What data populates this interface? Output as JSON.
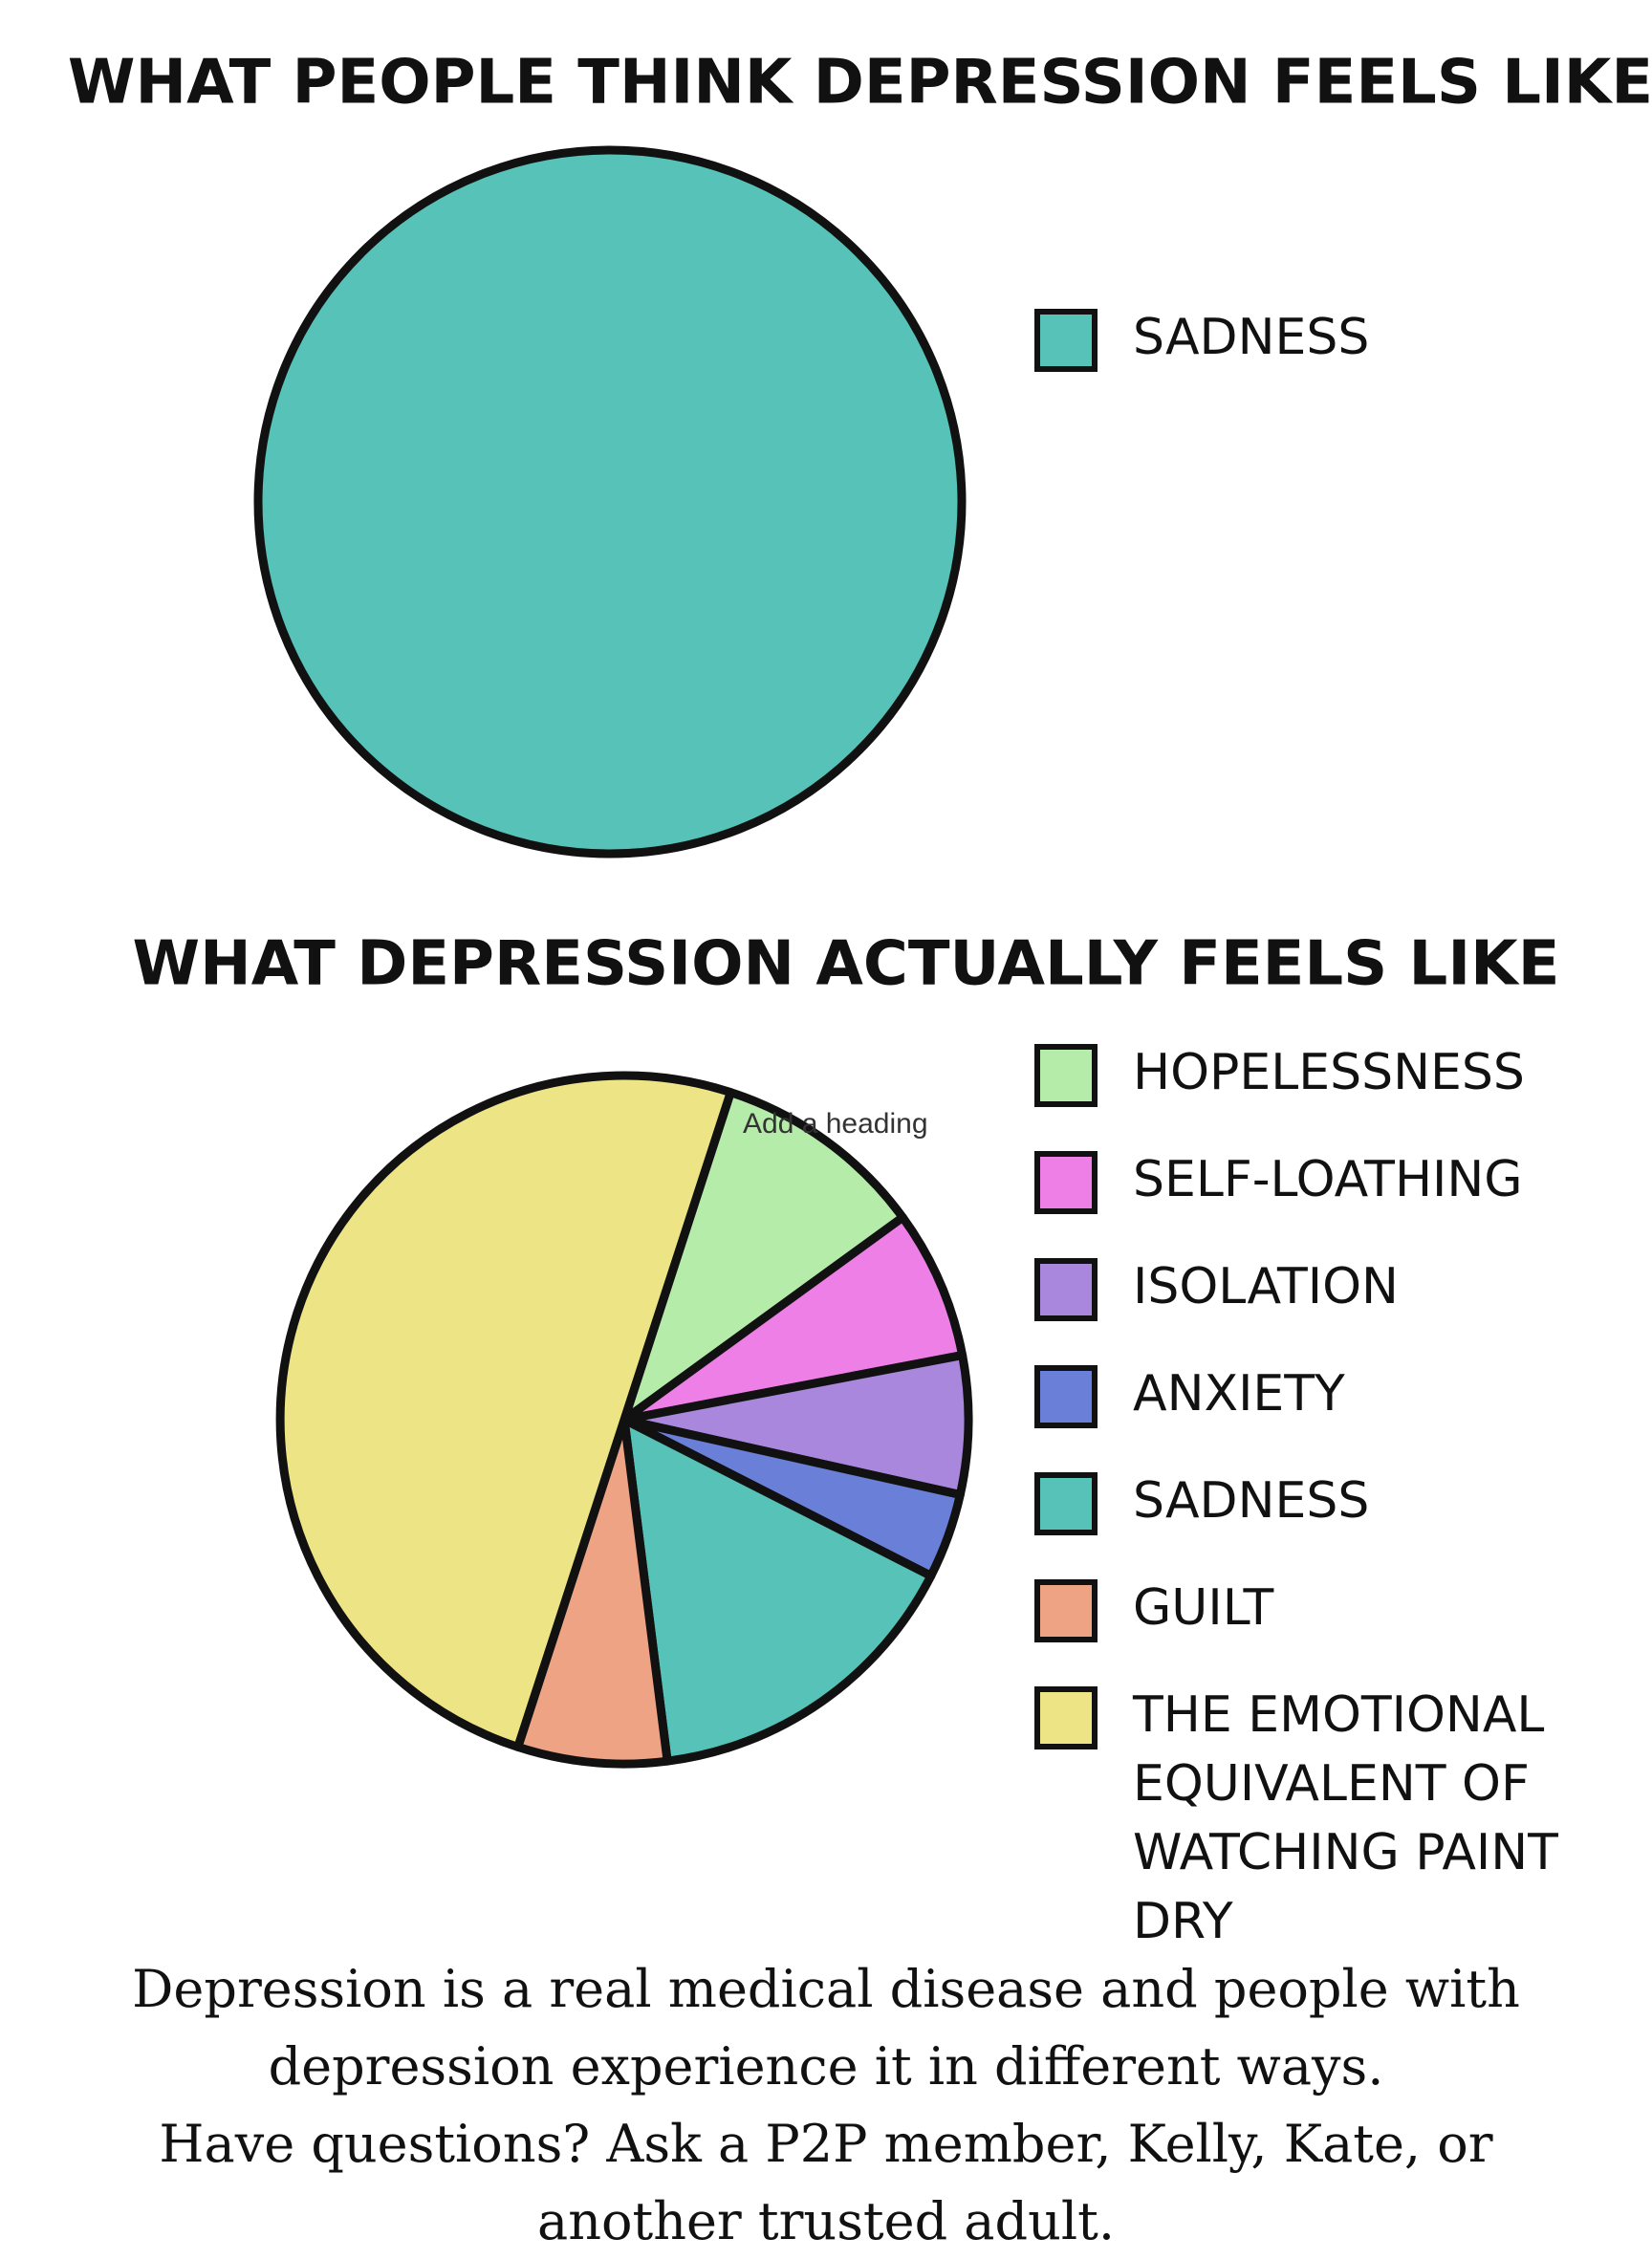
{
  "chart_data": [
    {
      "type": "pie",
      "title": "WHAT PEOPLE THINK DEPRESSION FEELS LIKE",
      "categories": [
        "SADNESS"
      ],
      "values": [
        100
      ],
      "colors": [
        "#57c2b8"
      ]
    },
    {
      "type": "pie",
      "title": "WHAT DEPRESSION ACTUALLY FEELS LIKE",
      "categories": [
        "HOPELESSNESS",
        "SELF-LOATHING",
        "ISOLATION",
        "ANXIETY",
        "SADNESS",
        "GUILT",
        "THE EMOTIONAL EQUIVALENT OF WATCHING PAINT DRY"
      ],
      "values": [
        10,
        7,
        6.5,
        4,
        15.5,
        7,
        50
      ],
      "colors": [
        "#b5eca9",
        "#ee7fe6",
        "#a987dc",
        "#6a80d8",
        "#57c2b8",
        "#eea384",
        "#ede585"
      ]
    }
  ],
  "overlay_text": "Add a heading",
  "caption": [
    "Depression is a real medical disease and people with depression experience it in different ways.",
    "Have questions? Ask a P2P member, Kelly, Kate, or another trusted adult."
  ]
}
